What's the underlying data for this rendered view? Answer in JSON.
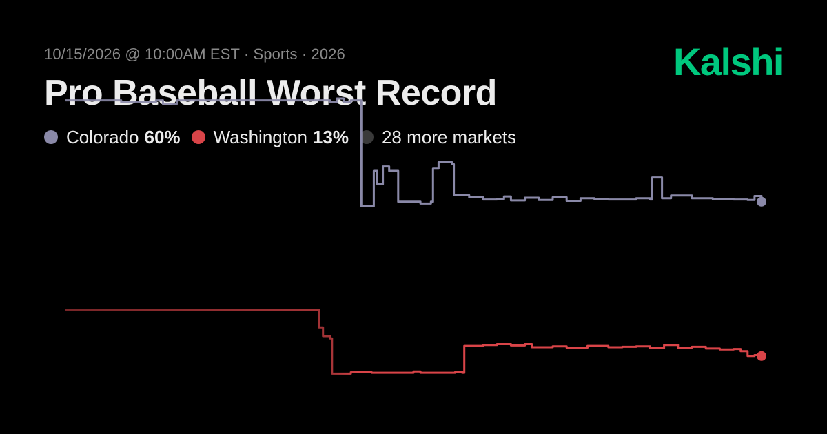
{
  "header": {
    "meta": "10/15/2026 @ 10:00AM EST · Sports · 2026",
    "title": "Pro Baseball Worst Record"
  },
  "logo": {
    "text": "Kalshi",
    "color": "#00c87e"
  },
  "legend": {
    "items": [
      {
        "name": "Colorado",
        "value": "60%",
        "color": "#8a89a8"
      },
      {
        "name": "Washington",
        "value": "13%",
        "color": "#d94448"
      },
      {
        "name": "28 more markets",
        "value": "",
        "color": "#3a3a3a"
      }
    ]
  },
  "chart_data": {
    "type": "line",
    "grid": false,
    "ylim": [
      0,
      100
    ],
    "series": [
      {
        "name": "Colorado",
        "color": "#8a89a8",
        "points": [
          [
            0,
            96
          ],
          [
            7,
            96
          ],
          [
            8,
            95.6
          ],
          [
            13,
            96
          ],
          [
            14,
            95.2
          ],
          [
            16,
            96
          ],
          [
            30,
            96
          ],
          [
            35,
            96
          ],
          [
            38,
            95.6
          ],
          [
            39,
            96.4
          ],
          [
            40,
            95.6
          ],
          [
            41,
            96
          ],
          [
            42.1,
            96
          ],
          [
            42.5,
            72
          ],
          [
            44,
            72
          ],
          [
            44.3,
            80
          ],
          [
            44.8,
            77
          ],
          [
            45.6,
            81
          ],
          [
            46.5,
            80
          ],
          [
            47.5,
            80
          ],
          [
            47.8,
            73
          ],
          [
            50,
            73
          ],
          [
            51,
            72.6
          ],
          [
            52.5,
            73
          ],
          [
            52.8,
            80.5
          ],
          [
            53.6,
            82
          ],
          [
            55.5,
            81.5
          ],
          [
            55.8,
            74.5
          ],
          [
            58,
            74
          ],
          [
            60,
            73.5
          ],
          [
            62,
            73.6
          ],
          [
            63,
            74.2
          ],
          [
            64,
            73.3
          ],
          [
            66,
            73.9
          ],
          [
            68,
            73.4
          ],
          [
            70,
            74
          ],
          [
            72,
            73.2
          ],
          [
            74,
            73.8
          ],
          [
            76,
            73.6
          ],
          [
            78,
            73.5
          ],
          [
            80,
            73.5
          ],
          [
            82,
            73.8
          ],
          [
            84,
            73.5
          ],
          [
            84.3,
            78.5
          ],
          [
            85.5,
            78.5
          ],
          [
            85.7,
            73.8
          ],
          [
            87,
            74.4
          ],
          [
            90,
            73.8
          ],
          [
            93,
            73.6
          ],
          [
            96,
            73.5
          ],
          [
            98,
            73.4
          ],
          [
            99,
            74.3
          ],
          [
            100,
            73
          ]
        ]
      },
      {
        "name": "Washington",
        "color": "#d94448",
        "points": [
          [
            0,
            48.5
          ],
          [
            36,
            48.5
          ],
          [
            36.4,
            44.5
          ],
          [
            37,
            42.5
          ],
          [
            38,
            42
          ],
          [
            38.3,
            34
          ],
          [
            41,
            34.3
          ],
          [
            44,
            34.2
          ],
          [
            50,
            34.5
          ],
          [
            51,
            34.2
          ],
          [
            56,
            34.4
          ],
          [
            57,
            34.2
          ],
          [
            57.3,
            40.3
          ],
          [
            60,
            40.5
          ],
          [
            62,
            40.7
          ],
          [
            64,
            40.4
          ],
          [
            66,
            40.7
          ],
          [
            67,
            40
          ],
          [
            70,
            40.2
          ],
          [
            72,
            39.9
          ],
          [
            75,
            40.3
          ],
          [
            78,
            40
          ],
          [
            80,
            40.1
          ],
          [
            82,
            40.2
          ],
          [
            84,
            39.8
          ],
          [
            86,
            40.5
          ],
          [
            88,
            39.9
          ],
          [
            90,
            40.1
          ],
          [
            92,
            39.7
          ],
          [
            94,
            39.5
          ],
          [
            96,
            39.6
          ],
          [
            97,
            39.1
          ],
          [
            98,
            38
          ],
          [
            99,
            38.2
          ],
          [
            100,
            38
          ]
        ]
      }
    ]
  }
}
